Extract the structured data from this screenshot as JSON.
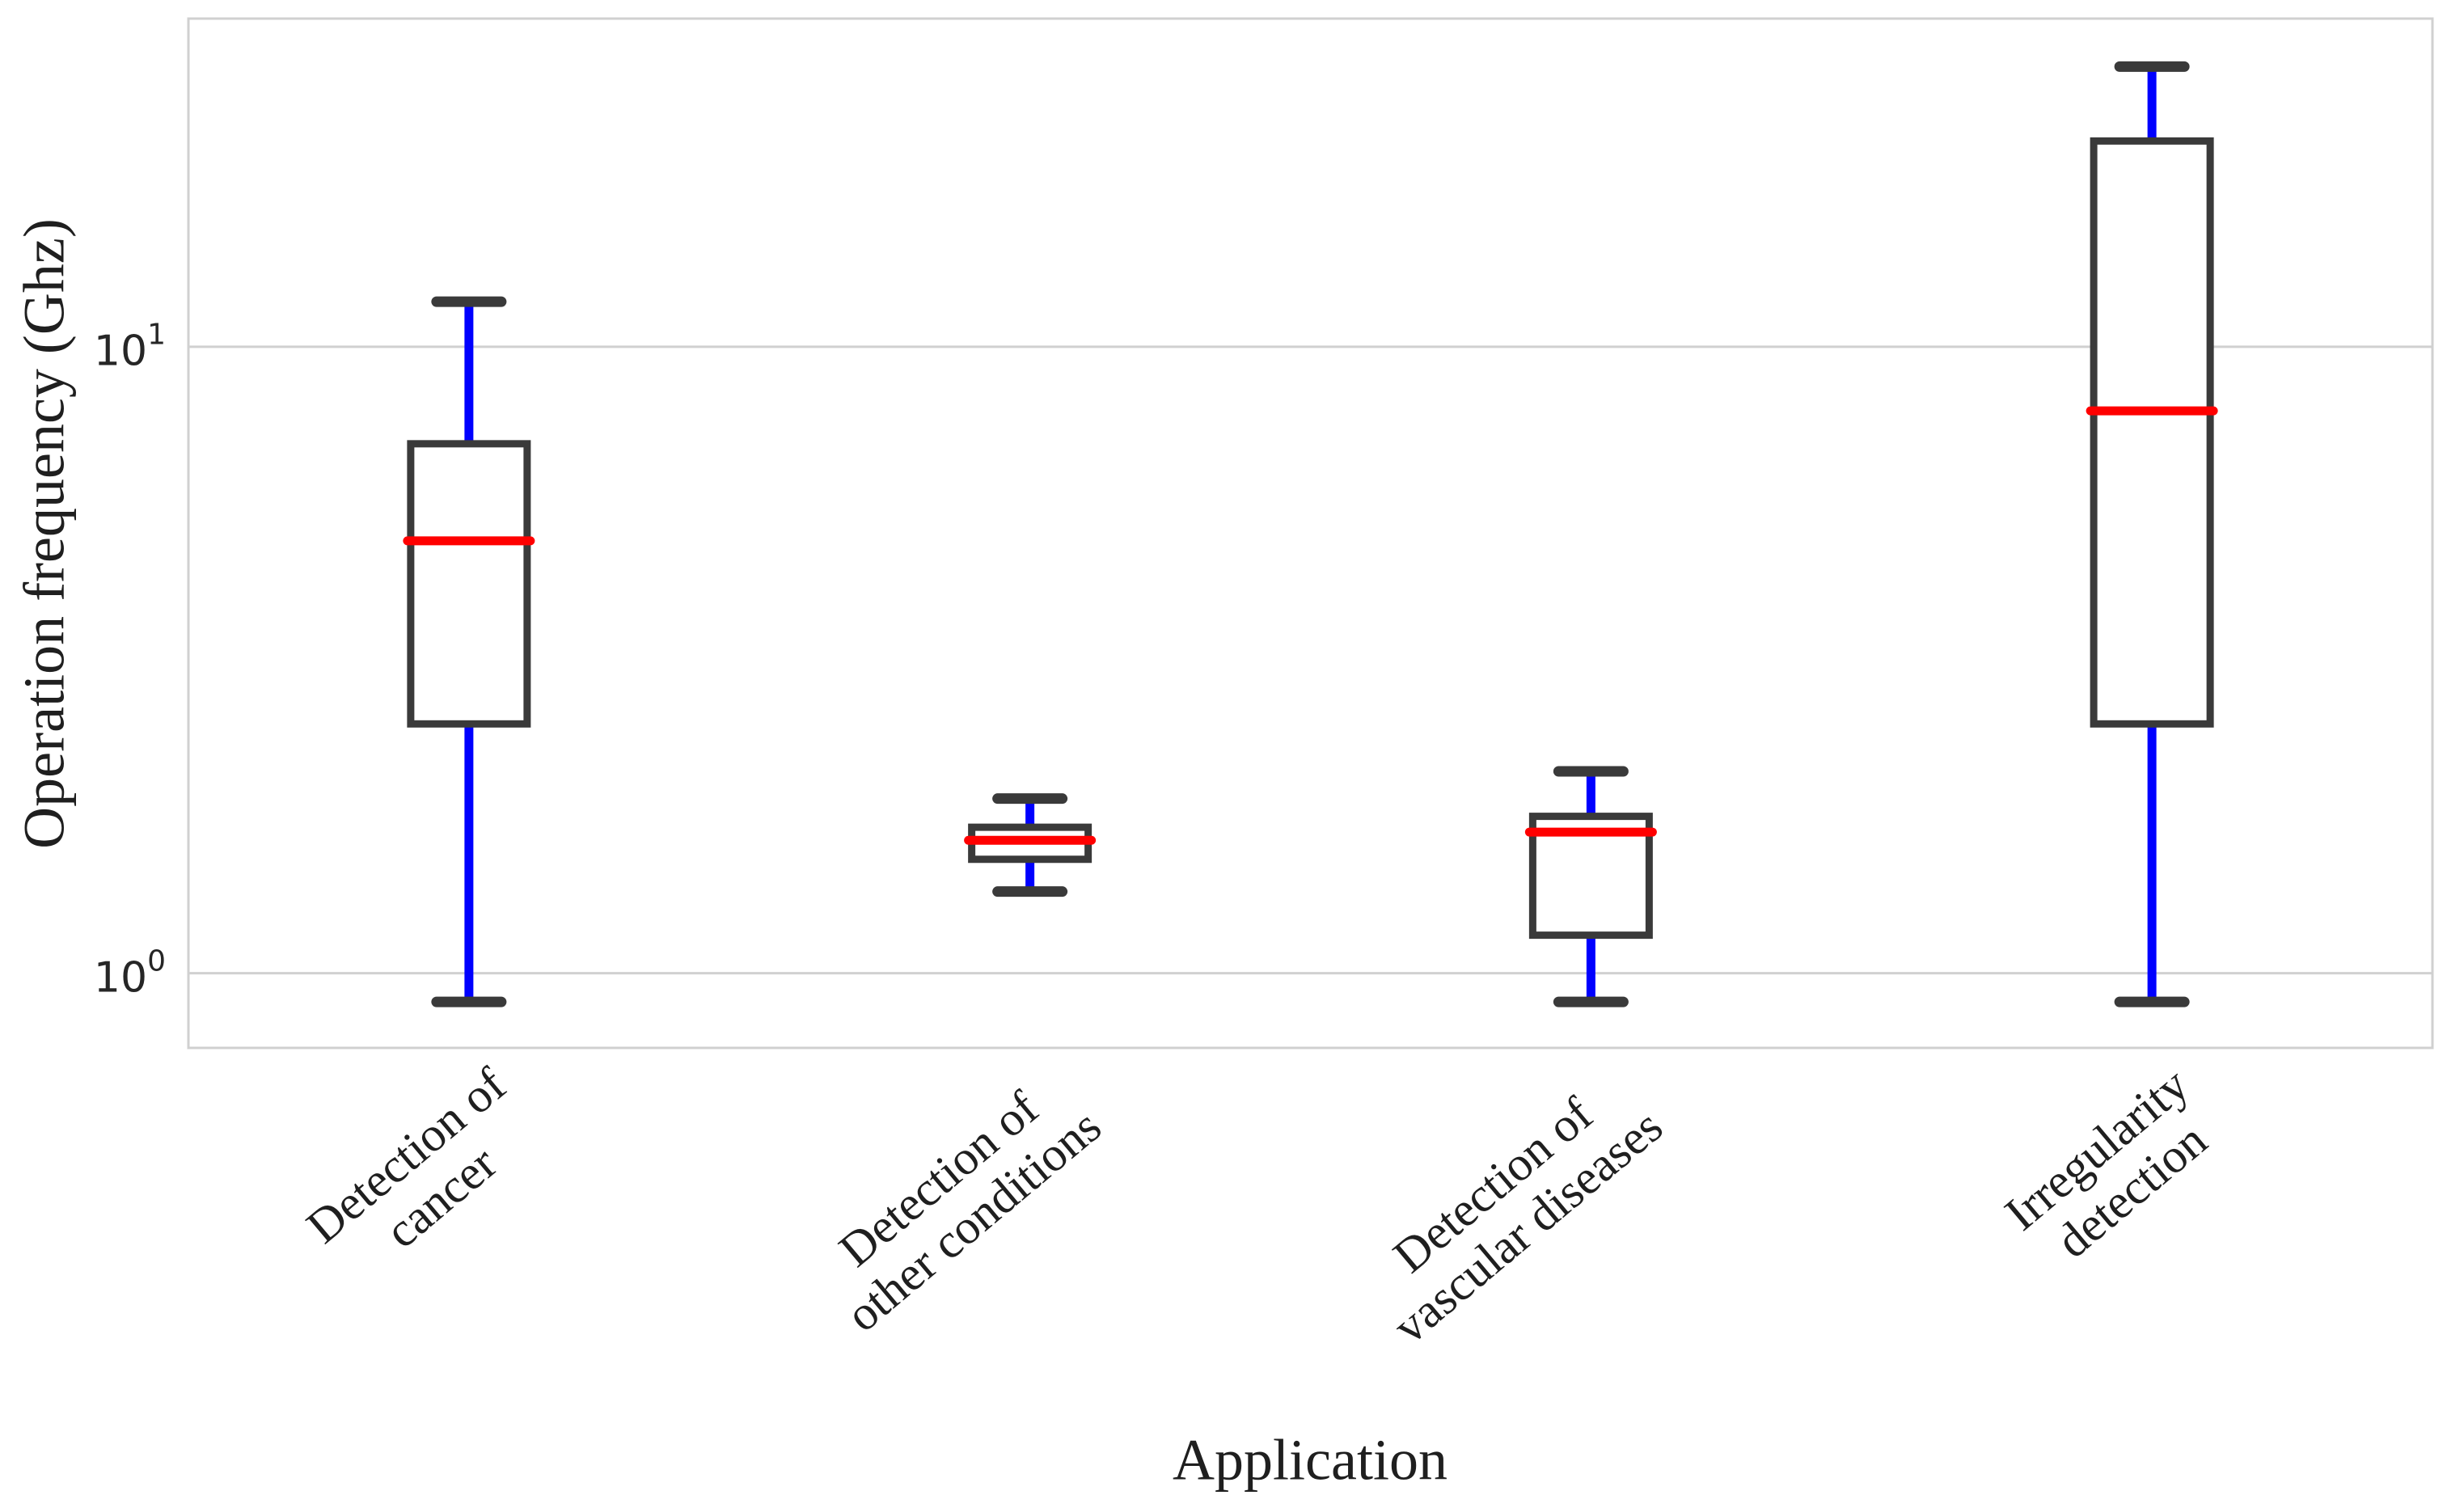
{
  "chart_data": {
    "type": "boxplot",
    "title": "",
    "xlabel": "Application",
    "ylabel": "Operation frequency (Ghz)",
    "yscale": "log",
    "ylim": [
      0.76,
      33.4
    ],
    "grid": "horizontal",
    "legend": "none",
    "yticks": [
      {
        "value": 10,
        "base": "10",
        "exponent": "1"
      },
      {
        "value": 1,
        "base": "10",
        "exponent": "0"
      }
    ],
    "categories": [
      "Detection of cancer",
      "Detection of other conditions",
      "Detection of vascular diseases",
      "Irregularity detection"
    ],
    "category_lines": [
      [
        "Detection of",
        "cancer"
      ],
      [
        "Detection of",
        "other conditions"
      ],
      [
        "Detection of",
        "vascular diseases"
      ],
      [
        "Irregularity",
        "detection"
      ]
    ],
    "boxes": [
      {
        "label": "Detection of cancer",
        "whisker_low": 0.9,
        "q1": 2.5,
        "median": 4.9,
        "q3": 7.0,
        "whisker_high": 11.8
      },
      {
        "label": "Detection of other conditions",
        "whisker_low": 1.35,
        "q1": 1.52,
        "median": 1.63,
        "q3": 1.71,
        "whisker_high": 1.9
      },
      {
        "label": "Detection of vascular diseases",
        "whisker_low": 0.9,
        "q1": 1.15,
        "median": 1.68,
        "q3": 1.78,
        "whisker_high": 2.1
      },
      {
        "label": "Irregularity detection",
        "whisker_low": 0.9,
        "q1": 2.5,
        "median": 7.9,
        "q3": 21.3,
        "whisker_high": 28.0
      }
    ],
    "colors": {
      "median": "#ff0000",
      "whisker": "#0000ff",
      "box_edge": "#3a3a3a",
      "cap": "#3a3a3a",
      "box_fill": "#ffffff",
      "grid": "#d0d0d0",
      "spine": "#d0d0d0",
      "text": "#1f1f1f",
      "background": "#ffffff"
    }
  }
}
